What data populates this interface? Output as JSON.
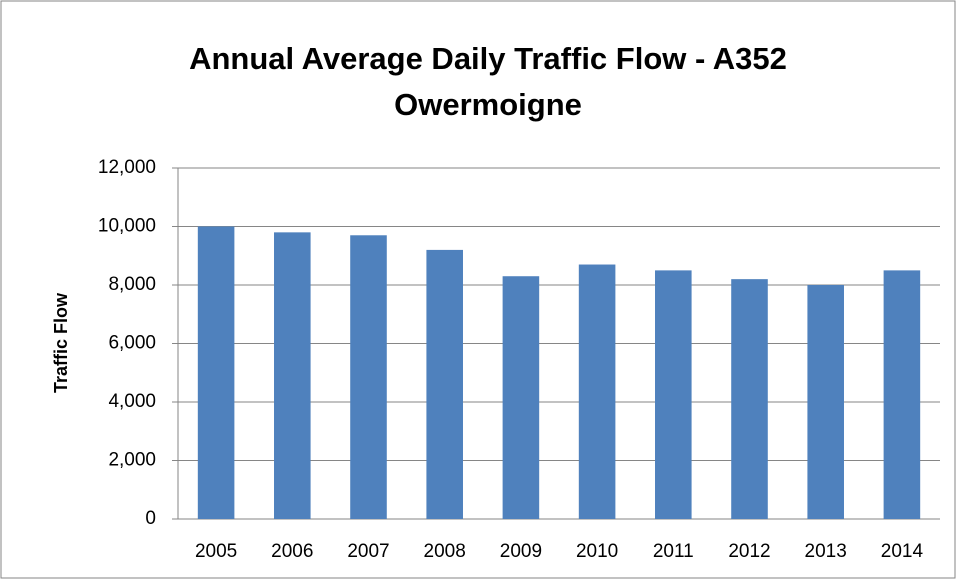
{
  "chart_data": {
    "type": "bar",
    "title": "Annual Average Daily Traffic Flow - A352 Owermoigne",
    "y_label": "Traffic Flow",
    "categories": [
      "2005",
      "2006",
      "2007",
      "2008",
      "2009",
      "2010",
      "2011",
      "2012",
      "2013",
      "2014"
    ],
    "values": [
      10000,
      9800,
      9700,
      9200,
      8300,
      8700,
      8500,
      8200,
      8000,
      8500
    ],
    "color": "#4f81bd",
    "ylim": [
      0,
      12000
    ],
    "yticks": [
      0,
      {
        "value": 2000,
        "label": "2,000"
      },
      {
        "value": 4000,
        "label": "4,000"
      },
      {
        "value": 6000,
        "label": "6,000"
      },
      {
        "value": 8000,
        "label": "8,000"
      },
      {
        "value": 10000,
        "label": "10,000"
      },
      {
        "value": 12000,
        "label": "12,000"
      }
    ],
    "grid": true
  }
}
